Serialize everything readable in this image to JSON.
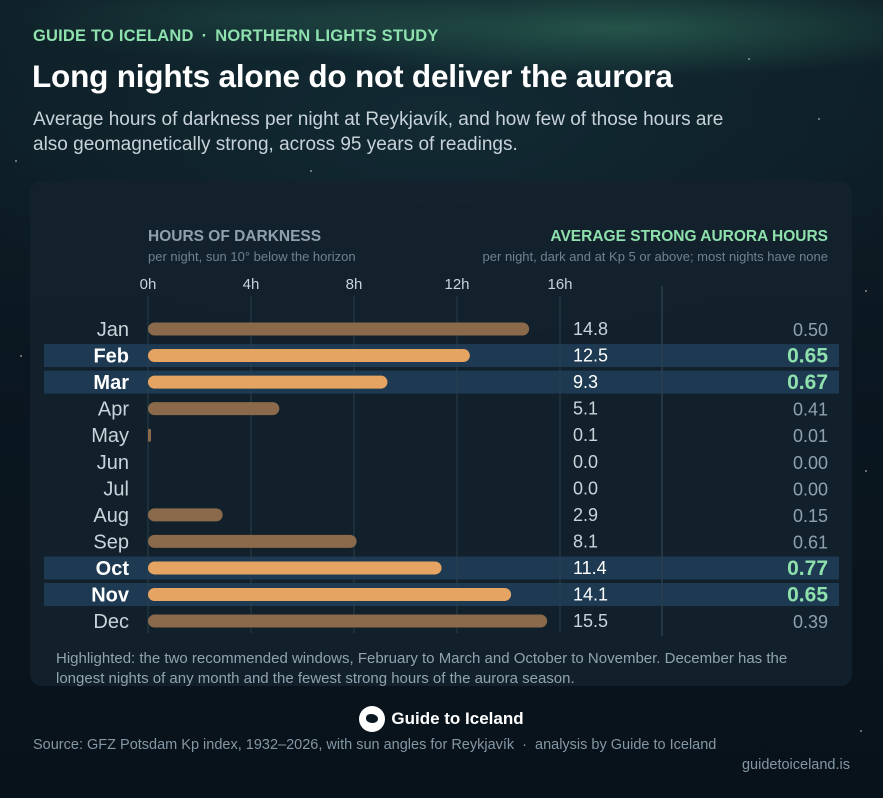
{
  "header": {
    "brand": "GUIDE TO ICELAND",
    "separator": "·",
    "section": "NORTHERN LIGHTS STUDY",
    "title": "Long nights alone do not deliver the aurora",
    "subtitle": "Average hours of darkness per night at Reykjavík, and how few of those hours are also geomagnetically strong, across 95 years of readings."
  },
  "chart_data": {
    "type": "bar",
    "categories": [
      "Jan",
      "Feb",
      "Mar",
      "Apr",
      "May",
      "Jun",
      "Jul",
      "Aug",
      "Sep",
      "Oct",
      "Nov",
      "Dec"
    ],
    "series": [
      {
        "name": "HOURS OF DARKNESS",
        "values": [
          14.8,
          12.5,
          9.3,
          5.1,
          0.1,
          0.0,
          0.0,
          2.9,
          8.1,
          11.4,
          14.1,
          15.5
        ],
        "labels": [
          "14.8",
          "12.5",
          "9.3",
          "5.1",
          "0.1",
          "0.0",
          "0.0",
          "2.9",
          "8.1",
          "11.4",
          "14.1",
          "15.5"
        ]
      },
      {
        "name": "AVERAGE STRONG AURORA HOURS",
        "values": [
          0.5,
          0.65,
          0.67,
          0.41,
          0.01,
          0.0,
          0.0,
          0.15,
          0.61,
          0.77,
          0.65,
          0.39
        ],
        "labels": [
          "0.50",
          "0.65",
          "0.67",
          "0.41",
          "0.01",
          "0.00",
          "0.00",
          "0.15",
          "0.61",
          "0.77",
          "0.65",
          "0.39"
        ]
      }
    ],
    "highlighted": [
      "Feb",
      "Mar",
      "Oct",
      "Nov"
    ],
    "xlim": [
      0,
      16
    ],
    "xticks": [
      "0h",
      "4h",
      "8h",
      "12h",
      "16h"
    ],
    "grid": true,
    "left_heading": "HOURS OF DARKNESS",
    "left_note": "per night, sun 10° below the horizon",
    "right_heading": "AVERAGE STRONG AURORA HOURS",
    "right_note": "per night, dark and at Kp 5 or above; most nights have none",
    "footnote": "Highlighted: the two recommended windows, February to March and October to November. December has the longest nights of any month and the fewest strong hours of the aurora season."
  },
  "colors": {
    "bar_normal": "#8a6a4a",
    "bar_highlight": "#e6a463",
    "highlight_band": "#1d3a52",
    "accent_green": "#8ee0ad",
    "text_muted": "#8fa1ae"
  },
  "footer": {
    "brand": "Guide to Iceland",
    "source": "Source: GFZ Potsdam Kp index, 1932–2026, with sun angles for Reykjavík",
    "separator": "·",
    "analysis": "analysis by Guide to Iceland",
    "url": "guidetoiceland.is"
  }
}
